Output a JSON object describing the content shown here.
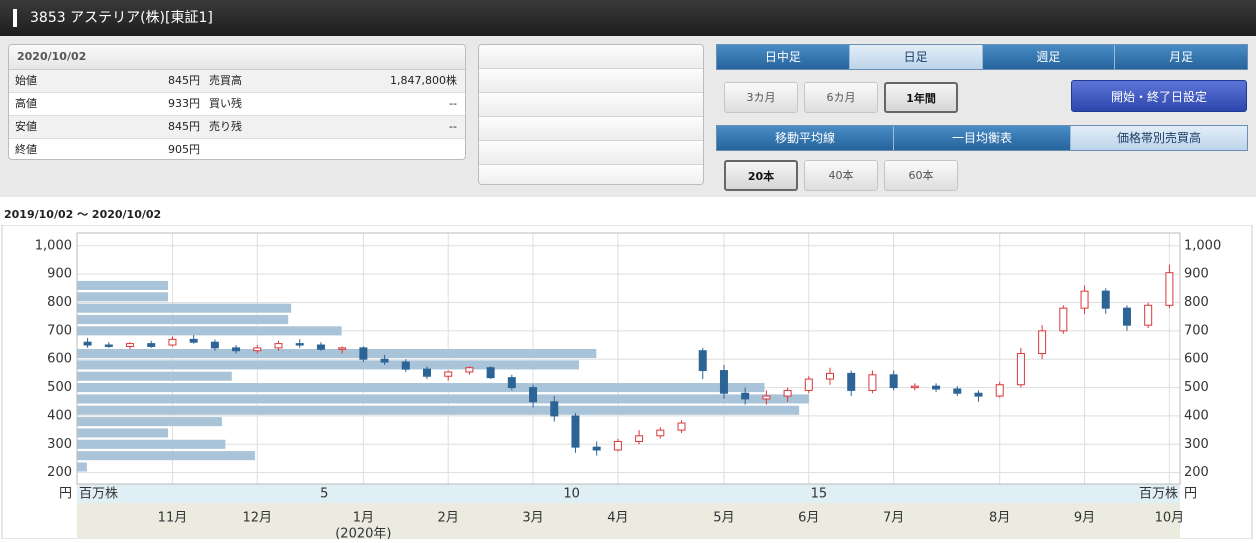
{
  "header": {
    "title": "3853 アステリア(株)[東証1]"
  },
  "quote": {
    "date": "2020/10/02",
    "rows": [
      [
        "始値",
        "845円",
        "売買高",
        "1,847,800株"
      ],
      [
        "高値",
        "933円",
        "買い残",
        "--"
      ],
      [
        "安値",
        "845円",
        "売り残",
        "--"
      ],
      [
        "終値",
        "905円"
      ]
    ]
  },
  "period_tabs": {
    "items": [
      "日中足",
      "日足",
      "週足",
      "月足"
    ],
    "active": 1
  },
  "range_buttons": {
    "items": [
      "3カ月",
      "6カ月",
      "1年間"
    ],
    "active": 2,
    "custom": "開始・終了日設定"
  },
  "indicator_tabs": {
    "items": [
      "移動平均線",
      "一目均衡表",
      "価格帯別売買高"
    ],
    "active": 2
  },
  "bar_buttons": {
    "items": [
      "20本",
      "40本",
      "60本"
    ],
    "active": 0
  },
  "range_text": "2019/10/02 ～ 2020/10/02",
  "chart_data": {
    "type": "candlestick",
    "y_unit": "円",
    "volume_unit": "百万株",
    "categories": [
      null,
      null,
      null,
      null,
      "11月",
      null,
      null,
      null,
      "12月",
      null,
      null,
      null,
      null,
      "1月",
      null,
      null,
      null,
      "2月",
      null,
      null,
      null,
      "3月",
      null,
      null,
      null,
      "4月",
      null,
      null,
      null,
      null,
      "5月",
      null,
      null,
      null,
      "6月",
      null,
      null,
      null,
      "7月",
      null,
      null,
      null,
      null,
      "8月",
      null,
      null,
      null,
      "9月",
      null,
      null,
      null,
      "10月"
    ],
    "category_sublabels": [
      null,
      null,
      null,
      null,
      null,
      null,
      null,
      null,
      null,
      null,
      null,
      null,
      null,
      "(2020年)",
      null,
      null,
      null,
      null,
      null,
      null,
      null,
      null,
      null,
      null,
      null,
      null,
      null,
      null,
      null,
      null,
      null,
      null,
      null,
      null,
      null,
      null,
      null,
      null,
      null,
      null,
      null,
      null,
      null,
      null,
      null,
      null,
      null,
      null,
      null,
      null,
      null,
      null
    ],
    "ohlc": [
      [
        660,
        675,
        640,
        650
      ],
      [
        650,
        660,
        640,
        645
      ],
      [
        645,
        660,
        635,
        655
      ],
      [
        655,
        665,
        640,
        645
      ],
      [
        650,
        680,
        645,
        670
      ],
      [
        670,
        685,
        655,
        660
      ],
      [
        660,
        670,
        630,
        640
      ],
      [
        640,
        650,
        620,
        630
      ],
      [
        630,
        650,
        620,
        640
      ],
      [
        640,
        665,
        630,
        655
      ],
      [
        655,
        670,
        640,
        650
      ],
      [
        650,
        660,
        630,
        635
      ],
      [
        635,
        645,
        620,
        640
      ],
      [
        640,
        645,
        590,
        600
      ],
      [
        600,
        615,
        580,
        590
      ],
      [
        590,
        600,
        555,
        565
      ],
      [
        565,
        575,
        530,
        540
      ],
      [
        540,
        560,
        525,
        555
      ],
      [
        555,
        575,
        545,
        570
      ],
      [
        570,
        575,
        530,
        535
      ],
      [
        535,
        545,
        490,
        500
      ],
      [
        500,
        510,
        430,
        450
      ],
      [
        450,
        470,
        380,
        400
      ],
      [
        400,
        410,
        270,
        290
      ],
      [
        290,
        310,
        260,
        280
      ],
      [
        280,
        320,
        275,
        310
      ],
      [
        310,
        350,
        300,
        330
      ],
      [
        330,
        360,
        320,
        350
      ],
      [
        350,
        385,
        340,
        375
      ],
      [
        630,
        640,
        530,
        560
      ],
      [
        560,
        580,
        460,
        480
      ],
      [
        480,
        500,
        440,
        460
      ],
      [
        460,
        490,
        440,
        470
      ],
      [
        470,
        500,
        450,
        490
      ],
      [
        490,
        540,
        480,
        530
      ],
      [
        530,
        570,
        510,
        550
      ],
      [
        550,
        560,
        470,
        490
      ],
      [
        490,
        560,
        480,
        545
      ],
      [
        545,
        560,
        490,
        500
      ],
      [
        500,
        515,
        490,
        505
      ],
      [
        505,
        515,
        485,
        495
      ],
      [
        495,
        505,
        470,
        480
      ],
      [
        480,
        490,
        450,
        470
      ],
      [
        470,
        520,
        465,
        510
      ],
      [
        510,
        640,
        500,
        620
      ],
      [
        620,
        720,
        600,
        700
      ],
      [
        700,
        790,
        690,
        780
      ],
      [
        780,
        860,
        760,
        840
      ],
      [
        840,
        850,
        760,
        780
      ],
      [
        780,
        790,
        700,
        720
      ],
      [
        720,
        800,
        710,
        790
      ],
      [
        790,
        933,
        780,
        905
      ]
    ],
    "up_color": "#d9383a",
    "down_color": "#2d6496",
    "ylim": [
      160,
      1045
    ],
    "yticks": [
      200,
      300,
      400,
      500,
      600,
      700,
      800,
      900,
      {
        "value": 1000,
        "label": "1,000"
      }
    ],
    "grid": true,
    "volume_profile": {
      "type": "bar",
      "orientation": "horizontal",
      "prices": [
        860,
        820,
        780,
        740,
        700,
        620,
        580,
        540,
        500,
        460,
        420,
        380,
        340,
        300,
        260,
        220
      ],
      "values": [
        1.84,
        1.84,
        4.33,
        4.27,
        5.35,
        10.5,
        10.15,
        3.13,
        13.9,
        14.8,
        14.6,
        2.93,
        1.84,
        3.0,
        3.6,
        0.2
      ],
      "color": "#a9c4d8",
      "xlim": [
        0,
        22.3
      ],
      "xticks": [
        5,
        10,
        15
      ]
    }
  }
}
